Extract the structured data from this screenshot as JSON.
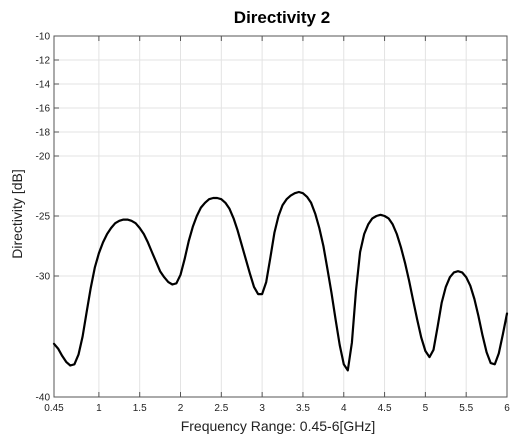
{
  "chart_data": {
    "type": "line",
    "title": "Directivity 2",
    "xlabel": "Frequency Range: 0.45-6[GHz]",
    "ylabel": "Directivity [dB]",
    "xlim": [
      0.45,
      6
    ],
    "ylim": [
      -40,
      -10
    ],
    "grid": true,
    "x_ticks": [
      {
        "value": 0.45,
        "label": "0.45"
      },
      {
        "value": 1,
        "label": "1"
      },
      {
        "value": 1.5,
        "label": "1.5"
      },
      {
        "value": 2,
        "label": "2"
      },
      {
        "value": 2.5,
        "label": "2.5"
      },
      {
        "value": 3,
        "label": "3"
      },
      {
        "value": 3.5,
        "label": "3.5"
      },
      {
        "value": 4,
        "label": "4"
      },
      {
        "value": 4.5,
        "label": "4.5"
      },
      {
        "value": 5,
        "label": "5"
      },
      {
        "value": 5.5,
        "label": "5.5"
      },
      {
        "value": 6,
        "label": "6"
      }
    ],
    "y_ticks": [
      {
        "value": -10,
        "label": "-10"
      },
      {
        "value": -12,
        "label": "-12"
      },
      {
        "value": -14,
        "label": "-14"
      },
      {
        "value": -16,
        "label": "-16"
      },
      {
        "value": -18,
        "label": "-18"
      },
      {
        "value": -20,
        "label": "-20"
      },
      {
        "value": -25,
        "label": "-25"
      },
      {
        "value": -30,
        "label": "-30"
      },
      {
        "value": -40,
        "label": "-40"
      }
    ],
    "series": [
      {
        "color": "#000000",
        "points": [
          [
            0.45,
            -35.6
          ],
          [
            0.5,
            -36.0
          ],
          [
            0.55,
            -36.6
          ],
          [
            0.6,
            -37.1
          ],
          [
            0.65,
            -37.4
          ],
          [
            0.7,
            -37.3
          ],
          [
            0.75,
            -36.5
          ],
          [
            0.8,
            -35.0
          ],
          [
            0.85,
            -33.0
          ],
          [
            0.9,
            -31.0
          ],
          [
            0.95,
            -29.3
          ],
          [
            1.0,
            -28.1
          ],
          [
            1.05,
            -27.2
          ],
          [
            1.1,
            -26.5
          ],
          [
            1.15,
            -26.0
          ],
          [
            1.2,
            -25.6
          ],
          [
            1.25,
            -25.4
          ],
          [
            1.3,
            -25.3
          ],
          [
            1.35,
            -25.3
          ],
          [
            1.4,
            -25.4
          ],
          [
            1.45,
            -25.6
          ],
          [
            1.5,
            -26.0
          ],
          [
            1.55,
            -26.5
          ],
          [
            1.6,
            -27.2
          ],
          [
            1.65,
            -28.0
          ],
          [
            1.7,
            -28.8
          ],
          [
            1.75,
            -29.6
          ],
          [
            1.8,
            -30.1
          ],
          [
            1.85,
            -30.5
          ],
          [
            1.9,
            -30.7
          ],
          [
            1.95,
            -30.6
          ],
          [
            2.0,
            -29.9
          ],
          [
            2.05,
            -28.6
          ],
          [
            2.1,
            -27.1
          ],
          [
            2.15,
            -25.9
          ],
          [
            2.2,
            -25.0
          ],
          [
            2.25,
            -24.3
          ],
          [
            2.3,
            -23.9
          ],
          [
            2.35,
            -23.6
          ],
          [
            2.4,
            -23.5
          ],
          [
            2.45,
            -23.5
          ],
          [
            2.5,
            -23.6
          ],
          [
            2.55,
            -23.9
          ],
          [
            2.6,
            -24.4
          ],
          [
            2.65,
            -25.2
          ],
          [
            2.7,
            -26.2
          ],
          [
            2.75,
            -27.4
          ],
          [
            2.8,
            -28.6
          ],
          [
            2.85,
            -29.8
          ],
          [
            2.9,
            -30.9
          ],
          [
            2.95,
            -31.5
          ],
          [
            3.0,
            -31.5
          ],
          [
            3.05,
            -30.5
          ],
          [
            3.1,
            -28.5
          ],
          [
            3.15,
            -26.4
          ],
          [
            3.2,
            -25.0
          ],
          [
            3.25,
            -24.1
          ],
          [
            3.3,
            -23.6
          ],
          [
            3.35,
            -23.3
          ],
          [
            3.4,
            -23.1
          ],
          [
            3.45,
            -23.0
          ],
          [
            3.5,
            -23.1
          ],
          [
            3.55,
            -23.4
          ],
          [
            3.6,
            -23.9
          ],
          [
            3.65,
            -24.8
          ],
          [
            3.7,
            -26.0
          ],
          [
            3.75,
            -27.5
          ],
          [
            3.8,
            -29.4
          ],
          [
            3.85,
            -31.4
          ],
          [
            3.9,
            -33.6
          ],
          [
            3.95,
            -35.7
          ],
          [
            4.0,
            -37.3
          ],
          [
            4.05,
            -37.8
          ],
          [
            4.1,
            -35.5
          ],
          [
            4.15,
            -31.2
          ],
          [
            4.2,
            -28.0
          ],
          [
            4.25,
            -26.5
          ],
          [
            4.3,
            -25.7
          ],
          [
            4.35,
            -25.2
          ],
          [
            4.4,
            -25.0
          ],
          [
            4.45,
            -24.9
          ],
          [
            4.5,
            -25.0
          ],
          [
            4.55,
            -25.2
          ],
          [
            4.6,
            -25.7
          ],
          [
            4.65,
            -26.5
          ],
          [
            4.7,
            -27.6
          ],
          [
            4.75,
            -28.9
          ],
          [
            4.8,
            -30.4
          ],
          [
            4.85,
            -32.0
          ],
          [
            4.9,
            -33.6
          ],
          [
            4.95,
            -35.1
          ],
          [
            5.0,
            -36.2
          ],
          [
            5.05,
            -36.7
          ],
          [
            5.1,
            -36.1
          ],
          [
            5.15,
            -34.2
          ],
          [
            5.2,
            -32.2
          ],
          [
            5.25,
            -30.9
          ],
          [
            5.3,
            -30.1
          ],
          [
            5.35,
            -29.7
          ],
          [
            5.4,
            -29.6
          ],
          [
            5.45,
            -29.7
          ],
          [
            5.5,
            -30.1
          ],
          [
            5.55,
            -30.8
          ],
          [
            5.6,
            -31.9
          ],
          [
            5.65,
            -33.3
          ],
          [
            5.7,
            -34.9
          ],
          [
            5.75,
            -36.3
          ],
          [
            5.8,
            -37.2
          ],
          [
            5.85,
            -37.3
          ],
          [
            5.9,
            -36.4
          ],
          [
            5.95,
            -34.8
          ],
          [
            6.0,
            -33.1
          ]
        ]
      }
    ]
  }
}
